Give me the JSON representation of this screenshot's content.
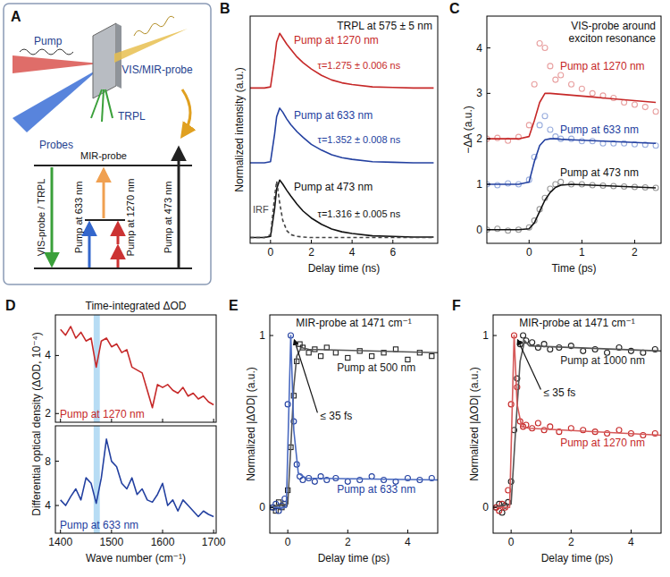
{
  "diagram": {
    "panel": "A",
    "labels": {
      "pump": "Pump",
      "probes": "Probes",
      "vis_mir_probe": "VIS/MIR-probe",
      "trpl": "TRPL",
      "vis_probe_trpl": "VIS-probe / TRPL",
      "mir_probe": "MIR-probe",
      "pump_633": "Pump at 633 nm",
      "pump_1270": "Pump at 1270 nm",
      "pump_473": "Pump at 473 nm"
    }
  },
  "chart_data": [
    {
      "panel": "B",
      "type": "line",
      "title": "TRPL at 575 ± 5 nm",
      "x_label": "Delay time (ns)",
      "y_label": "Normalized intensity (a.u.)",
      "xlim": [
        -1.0,
        8.2
      ],
      "xticks": [
        0,
        2,
        4,
        6
      ],
      "ylim": [
        -0.1,
        3.85
      ],
      "tick_labels": "x",
      "x": [
        -1.0,
        -0.3,
        0,
        0.2,
        0.3,
        0.45,
        0.6,
        0.8,
        1.0,
        1.3,
        1.6,
        2,
        2.5,
        3,
        3.5,
        4,
        5,
        6,
        7,
        8
      ],
      "series": [
        {
          "name": "Pump at 1270 nm",
          "color": "#c62828",
          "line_style": "solid",
          "annotation": "τ=1.275 ± 0.006 ns",
          "values": [
            2.6,
            2.6,
            2.62,
            3.1,
            3.4,
            3.55,
            3.47,
            3.36,
            3.27,
            3.14,
            3.04,
            2.93,
            2.82,
            2.74,
            2.69,
            2.66,
            2.62,
            2.61,
            2.6,
            2.6
          ]
        },
        {
          "name": "Pump at 633 nm",
          "color": "#2340a0",
          "line_style": "solid",
          "annotation": "τ=1.352 ± 0.008 ns",
          "values": [
            1.3,
            1.3,
            1.32,
            1.8,
            2.1,
            2.25,
            2.18,
            2.06,
            1.96,
            1.84,
            1.74,
            1.62,
            1.52,
            1.44,
            1.39,
            1.36,
            1.32,
            1.31,
            1.3,
            1.3
          ]
        },
        {
          "name": "Pump at 473 nm",
          "color": "#111111",
          "line_style": "solid",
          "annotation": "τ=1.316 ± 0.005 ns",
          "values": [
            0,
            0,
            0.02,
            0.5,
            0.85,
            1.0,
            0.93,
            0.82,
            0.72,
            0.58,
            0.46,
            0.34,
            0.23,
            0.15,
            0.1,
            0.07,
            0.03,
            0.02,
            0.01,
            0.01
          ]
        },
        {
          "name": "IRF",
          "color": "#444444",
          "line_style": "dashed",
          "values": [
            0,
            0,
            0.05,
            0.7,
            0.98,
            0.6,
            0.3,
            0.12,
            0.05,
            0.02,
            0.01,
            0,
            0,
            0,
            0,
            0,
            0,
            0,
            0,
            0
          ]
        }
      ]
    },
    {
      "panel": "C",
      "type": "scatter",
      "title": "VIS-probe around exciton resonance",
      "x_label": "Time (ps)",
      "y_label": "−ΔA (a.u.)",
      "xlim": [
        -0.8,
        2.5
      ],
      "xticks": [
        0,
        1,
        2
      ],
      "ylim": [
        -0.3,
        4.7
      ],
      "yticks": [
        0,
        1,
        2,
        3,
        4
      ],
      "x": [
        -0.8,
        -0.6,
        -0.4,
        -0.2,
        0,
        0.1,
        0.2,
        0.3,
        0.4,
        0.5,
        0.6,
        0.8,
        1.0,
        1.2,
        1.4,
        1.6,
        1.8,
        2.0,
        2.2,
        2.4
      ],
      "series": [
        {
          "name": "Pump at 1270 nm",
          "color": "#e8a0a0",
          "marker": "circle",
          "values": [
            2.0,
            2.02,
            1.96,
            2.04,
            2.3,
            3.2,
            4.1,
            4.0,
            3.6,
            3.3,
            3.4,
            3.2,
            3.1,
            3.0,
            2.95,
            2.9,
            2.8,
            2.75,
            2.7,
            2.6
          ]
        },
        {
          "type": "line",
          "color": "#c62828",
          "values": [
            2,
            2,
            2,
            2,
            2.05,
            2.4,
            2.8,
            3.0,
            3.0,
            2.99,
            2.98,
            2.96,
            2.94,
            2.92,
            2.9,
            2.88,
            2.86,
            2.84,
            2.82,
            2.8
          ]
        },
        {
          "name": "Pump at 633 nm",
          "color": "#9aaede",
          "marker": "circle",
          "values": [
            1.0,
            0.98,
            1.02,
            1.0,
            1.1,
            1.6,
            2.3,
            2.5,
            2.2,
            2.05,
            2.0,
            2.0,
            1.95,
            1.95,
            1.9,
            1.9,
            1.9,
            1.88,
            1.87,
            1.85
          ]
        },
        {
          "type": "line",
          "color": "#2340a0",
          "values": [
            1,
            1,
            1,
            1,
            1.05,
            1.5,
            1.85,
            1.98,
            2.0,
            2.0,
            1.99,
            1.98,
            1.97,
            1.96,
            1.95,
            1.94,
            1.93,
            1.92,
            1.91,
            1.9
          ]
        },
        {
          "name": "Pump at 473 nm",
          "color": "#999999",
          "marker": "circle",
          "values": [
            0,
            0.02,
            -0.02,
            0,
            0.05,
            0.2,
            0.45,
            0.7,
            0.9,
            1.0,
            1.05,
            1.0,
            1.0,
            0.98,
            0.97,
            0.96,
            0.95,
            0.94,
            0.93,
            0.92
          ]
        },
        {
          "type": "line",
          "color": "#111111",
          "values": [
            0,
            0,
            0,
            0,
            0.02,
            0.15,
            0.4,
            0.65,
            0.82,
            0.93,
            0.98,
            1.0,
            0.99,
            0.98,
            0.97,
            0.96,
            0.95,
            0.94,
            0.93,
            0.92
          ]
        }
      ]
    },
    {
      "panel": "D",
      "type": "line",
      "title": "Time-integrated ΔOD",
      "y_label": "Differential optical density (ΔOD, 10⁻⁴)",
      "xlim": [
        1390,
        1705
      ],
      "xticks": [
        1400,
        1500,
        1600,
        1700
      ],
      "ylim": [
        1.7,
        5.4
      ],
      "yticks": [
        2,
        4
      ],
      "tick_labels": "y",
      "band": [
        1465,
        1477
      ],
      "x": [
        1400,
        1410,
        1420,
        1430,
        1440,
        1450,
        1460,
        1470,
        1480,
        1490,
        1500,
        1510,
        1520,
        1530,
        1540,
        1550,
        1560,
        1570,
        1580,
        1590,
        1600,
        1610,
        1620,
        1630,
        1640,
        1650,
        1660,
        1670,
        1680,
        1690,
        1700
      ],
      "series": [
        {
          "name": "Pump at 1270 nm",
          "color": "#c62828",
          "values": [
            4.9,
            4.7,
            5.0,
            4.6,
            4.8,
            4.5,
            4.6,
            3.6,
            4.5,
            4.6,
            4.3,
            4.4,
            4.1,
            4.2,
            3.6,
            3.5,
            3.4,
            2.8,
            2.2,
            3.0,
            2.9,
            3.0,
            2.8,
            2.7,
            2.9,
            2.6,
            2.7,
            2.5,
            2.6,
            2.4,
            2.3
          ]
        }
      ]
    },
    {
      "type": "line",
      "x_label": "Wave number (cm⁻¹)",
      "xlim": [
        1390,
        1705
      ],
      "xticks": [
        1400,
        1500,
        1600,
        1700
      ],
      "ylim": [
        1.5,
        11.2
      ],
      "yticks": [
        4,
        8
      ],
      "band": [
        1465,
        1477
      ],
      "x": [
        1400,
        1410,
        1420,
        1430,
        1440,
        1450,
        1460,
        1470,
        1480,
        1490,
        1500,
        1510,
        1520,
        1530,
        1540,
        1550,
        1560,
        1570,
        1580,
        1590,
        1600,
        1610,
        1620,
        1630,
        1640,
        1650,
        1660,
        1670,
        1680,
        1690,
        1700
      ],
      "series": [
        {
          "name": "Pump at 633 nm",
          "color": "#2340a0",
          "values": [
            4.5,
            4.0,
            4.8,
            5.5,
            4.5,
            6.5,
            6.0,
            4.2,
            6.5,
            10.0,
            8.0,
            7.5,
            6.0,
            5.5,
            6.5,
            5.0,
            5.5,
            4.5,
            4.3,
            5.0,
            6.0,
            4.0,
            4.5,
            3.5,
            4.5,
            4.0,
            3.5,
            3.0,
            3.5,
            3.2,
            3.0
          ]
        }
      ]
    },
    {
      "panel": "E",
      "type": "scatter",
      "title": "MIR-probe at 1471 cm⁻¹",
      "x_label": "Delay time (ps)",
      "y_label": "Normalized |ΔOD| (a.u.)",
      "xlim": [
        -0.6,
        5
      ],
      "xticks": [
        0,
        2,
        4
      ],
      "ylim": [
        -0.15,
        1.12
      ],
      "yticks": [
        0,
        1
      ],
      "annotations": [
        "≤ 35 fs"
      ],
      "x": [
        -0.5,
        -0.4,
        -0.3,
        -0.2,
        -0.1,
        0,
        0.1,
        0.2,
        0.3,
        0.4,
        0.5,
        0.7,
        0.9,
        1.1,
        1.3,
        1.6,
        2,
        2.4,
        2.8,
        3.2,
        3.6,
        4,
        4.4,
        4.8
      ],
      "series": [
        {
          "name": "Pump at 500 nm",
          "color": "#222222",
          "marker": "square",
          "values": [
            0.0,
            -0.02,
            0.03,
            0.0,
            0.02,
            0.1,
            0.35,
            0.65,
            0.85,
            0.95,
            0.93,
            0.9,
            0.92,
            0.88,
            0.93,
            0.9,
            0.87,
            0.91,
            0.88,
            0.9,
            0.92,
            0.86,
            0.9,
            0.88
          ]
        },
        {
          "name": "Pump at 633 nm",
          "color": "#2340a0",
          "marker": "circle",
          "values": [
            0.0,
            0.02,
            -0.02,
            0.01,
            0.05,
            0.6,
            1.0,
            0.5,
            0.25,
            0.18,
            0.16,
            0.17,
            0.15,
            0.18,
            0.16,
            0.17,
            0.15,
            0.16,
            0.18,
            0.16,
            0.15,
            0.17,
            0.16,
            0.17
          ]
        },
        {
          "type": "line",
          "color": "#555555",
          "x": [
            -0.6,
            0,
            0.1,
            0.2,
            0.3,
            0.45,
            0.7,
            5
          ],
          "values": [
            0,
            0.02,
            0.35,
            0.7,
            0.88,
            0.93,
            0.92,
            0.9
          ]
        },
        {
          "type": "line",
          "color": "#4a6ac0",
          "x": [
            -0.6,
            -0.05,
            0.1,
            0.2,
            0.35,
            0.6,
            5
          ],
          "values": [
            0,
            0,
            1.0,
            0.45,
            0.2,
            0.17,
            0.16
          ]
        }
      ]
    },
    {
      "panel": "F",
      "type": "scatter",
      "title": "MIR-probe at 1471 cm⁻¹",
      "x_label": "Delay time (ps)",
      "y_label": "Normalized |ΔOD| (a.u.)",
      "xlim": [
        -0.6,
        5
      ],
      "xticks": [
        0,
        2,
        4
      ],
      "ylim": [
        -0.15,
        1.12
      ],
      "yticks": [
        0,
        1
      ],
      "annotations": [
        "≤ 35 fs"
      ],
      "x": [
        -0.5,
        -0.4,
        -0.3,
        -0.2,
        -0.1,
        0,
        0.1,
        0.2,
        0.3,
        0.4,
        0.5,
        0.7,
        0.9,
        1.1,
        1.3,
        1.6,
        2,
        2.4,
        2.8,
        3.2,
        3.6,
        4,
        4.4,
        4.8
      ],
      "series": [
        {
          "name": "Pump at 1000 nm",
          "color": "#222222",
          "marker": "circle",
          "values": [
            0.0,
            0.02,
            -0.03,
            0.01,
            0.03,
            0.15,
            0.45,
            0.75,
            0.95,
            1.0,
            0.97,
            0.96,
            0.93,
            0.95,
            0.92,
            0.93,
            0.94,
            0.91,
            0.92,
            0.9,
            0.93,
            0.91,
            0.9,
            0.92
          ]
        },
        {
          "name": "Pump at 1270 nm",
          "color": "#c62828",
          "marker": "circle",
          "values": [
            0.0,
            -0.02,
            0.02,
            0.0,
            0.1,
            0.6,
            1.0,
            0.7,
            0.5,
            0.47,
            0.48,
            0.46,
            0.49,
            0.45,
            0.47,
            0.44,
            0.46,
            0.45,
            0.44,
            0.43,
            0.45,
            0.43,
            0.42,
            0.43
          ]
        },
        {
          "type": "line",
          "color": "#555555",
          "x": [
            -0.6,
            0,
            0.15,
            0.3,
            0.45,
            0.6,
            5
          ],
          "values": [
            0,
            0.02,
            0.45,
            0.85,
            0.97,
            0.94,
            0.91
          ]
        },
        {
          "type": "line",
          "color": "#d65a5a",
          "x": [
            -0.6,
            -0.05,
            0.1,
            0.2,
            0.35,
            0.6,
            5
          ],
          "values": [
            0,
            0,
            1.0,
            0.6,
            0.47,
            0.46,
            0.42
          ]
        }
      ]
    }
  ]
}
